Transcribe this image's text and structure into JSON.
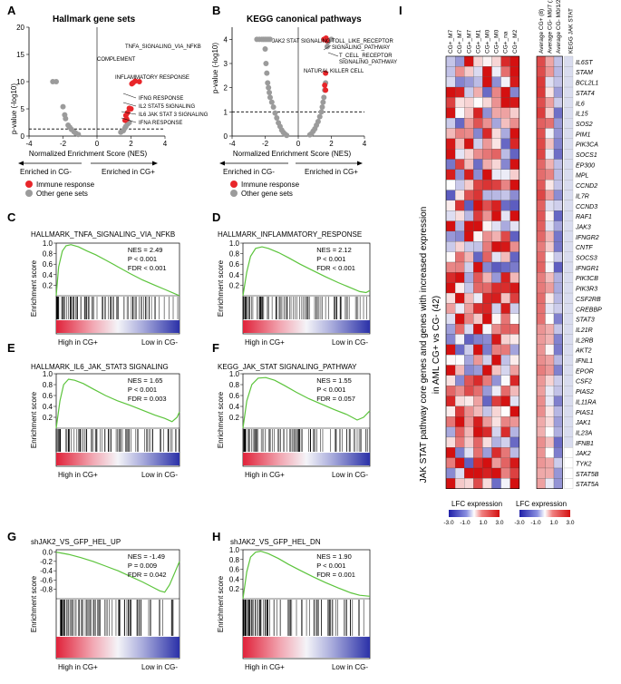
{
  "panels": {
    "A": {
      "label": "A",
      "title": "Hallmark gene sets"
    },
    "B": {
      "label": "B",
      "title": "KEGG canonical pathways"
    },
    "C": {
      "label": "C"
    },
    "D": {
      "label": "D"
    },
    "E": {
      "label": "E"
    },
    "F": {
      "label": "F"
    },
    "G": {
      "label": "G"
    },
    "H": {
      "label": "H"
    },
    "I": {
      "label": "I"
    }
  },
  "volcano_common": {
    "xlabel": "Normalized Enrichment Score (NES)",
    "ylabel": "p-value (-log10)",
    "enriched_left": "Enriched in CG-",
    "enriched_right": "Enriched in CG+",
    "legend_immune": "Immune response",
    "legend_other": "Other gene sets",
    "colors": {
      "immune": "#e8262a",
      "other": "#9b9b9b"
    }
  },
  "gsea_common": {
    "ylabel": "Enrichment score",
    "high_label": "High in CG+",
    "low_label": "Low in CG-",
    "curve_color": "#5cc43c"
  },
  "heatmap_common": {
    "title_line1": "JAK STAT pathway core genes and  genes with increased expression",
    "title_line2": "in AML CG+ vs CG- (42)",
    "legend_title": "LFC expression",
    "legend_ticks": [
      "-3.0",
      "-1.0",
      "1.0",
      "3.0"
    ]
  },
  "chart_data": [
    {
      "id": "A",
      "type": "scatter",
      "title": "Hallmark gene sets",
      "xlabel": "Normalized Enrichment Score (NES)",
      "ylabel": "p-value (-log10)",
      "xlim": [
        -4,
        4
      ],
      "ylim": [
        0,
        20
      ],
      "xticks": [
        -4,
        -2,
        0,
        2,
        4
      ],
      "yticks": [
        0,
        5,
        10,
        15,
        20
      ],
      "threshold": 1.3,
      "series": [
        {
          "name": "Other gene sets",
          "color": "#9b9b9b",
          "points": [
            [
              -2.6,
              10
            ],
            [
              -2.4,
              10
            ],
            [
              -2.0,
              5.4
            ],
            [
              -1.9,
              3.9
            ],
            [
              -1.85,
              3.2
            ],
            [
              -1.7,
              2.0
            ],
            [
              -1.6,
              1.6
            ],
            [
              -1.5,
              1.2
            ],
            [
              -1.35,
              0.8
            ],
            [
              -1.25,
              0.55
            ],
            [
              -1.1,
              0.3
            ],
            [
              1.4,
              0.7
            ],
            [
              1.55,
              1.0
            ],
            [
              1.65,
              1.5
            ],
            [
              1.7,
              1.8
            ],
            [
              1.8,
              2.2
            ],
            [
              1.9,
              2.5
            ]
          ]
        },
        {
          "name": "Immune response",
          "color": "#e8262a",
          "points": [
            [
              2.05,
              9.6
            ],
            [
              2.12,
              9.8
            ],
            [
              2.25,
              10.1
            ],
            [
              2.49,
              10.0
            ],
            [
              1.9,
              5.1
            ],
            [
              2.0,
              5.0
            ],
            [
              1.7,
              3.8
            ],
            [
              1.8,
              4.3
            ],
            [
              1.65,
              2.9
            ],
            [
              1.75,
              3.1
            ]
          ]
        }
      ],
      "annotations": [
        "TNFA_SIGNALING_VIA_NFKB",
        "COMPLEMENT",
        "INFLAMMATORY RESPONSE",
        "IFNG RESPONSE",
        "IL2 STAT5 SIGNALING",
        "IL6 JAK STAT 3 SIGNALING",
        "IFNA RESPONSE"
      ]
    },
    {
      "id": "B",
      "type": "scatter",
      "title": "KEGG canonical pathways",
      "xlabel": "Normalized Enrichment Score (NES)",
      "ylabel": "p-value (-log10)",
      "xlim": [
        -4,
        4
      ],
      "ylim": [
        0,
        4.5
      ],
      "xticks": [
        -4,
        -2,
        0,
        2,
        4
      ],
      "yticks": [
        0,
        1,
        2,
        3,
        4
      ],
      "threshold": 1.0,
      "series": [
        {
          "name": "Other gene sets",
          "color": "#9b9b9b",
          "points": [
            [
              -2.5,
              4
            ],
            [
              -2.35,
              4
            ],
            [
              -2.2,
              4
            ],
            [
              -2.1,
              4
            ],
            [
              -2.0,
              4
            ],
            [
              -1.9,
              4
            ],
            [
              -1.8,
              4
            ],
            [
              -1.7,
              4
            ],
            [
              -2.0,
              3.6
            ],
            [
              -1.95,
              3.0
            ],
            [
              -1.9,
              2.6
            ],
            [
              -1.85,
              2.2
            ],
            [
              -1.8,
              2.0
            ],
            [
              -1.75,
              1.8
            ],
            [
              -1.7,
              1.6
            ],
            [
              -1.6,
              1.4
            ],
            [
              -1.5,
              1.2
            ],
            [
              -1.4,
              0.95
            ],
            [
              -1.3,
              0.75
            ],
            [
              -1.2,
              0.55
            ],
            [
              -1.1,
              0.4
            ],
            [
              -1.0,
              0.25
            ],
            [
              -0.9,
              0.15
            ],
            [
              -0.8,
              0.08
            ],
            [
              -0.7,
              0.03
            ],
            [
              0.7,
              0.05
            ],
            [
              0.8,
              0.1
            ],
            [
              0.9,
              0.2
            ],
            [
              1.0,
              0.3
            ],
            [
              1.1,
              0.45
            ],
            [
              1.2,
              0.6
            ],
            [
              1.3,
              0.8
            ],
            [
              1.4,
              1.0
            ],
            [
              1.45,
              1.2
            ],
            [
              1.5,
              1.4
            ],
            [
              1.55,
              1.6
            ],
            [
              1.6,
              1.9
            ],
            [
              1.65,
              2.2
            ],
            [
              1.75,
              3.7
            ],
            [
              1.8,
              3.9
            ],
            [
              2.0,
              4.0
            ]
          ]
        },
        {
          "name": "Immune response",
          "color": "#e8262a",
          "points": [
            [
              1.55,
              4.0
            ],
            [
              1.6,
              4.0
            ],
            [
              1.68,
              4.05
            ],
            [
              1.72,
              3.95
            ],
            [
              1.65,
              2.6
            ],
            [
              1.6,
              2.1
            ],
            [
              1.65,
              1.9
            ]
          ]
        }
      ],
      "annotations": [
        "JAK2 STAT SIGNALING",
        "TOLL_LIKE_RECEPTOR",
        "SIGNALING_PATHWAY",
        "T_CELL_RECEPTOR",
        "SIGNALING_PATHWAY",
        "NATURAL KILLER CELL"
      ]
    },
    {
      "id": "C",
      "type": "line",
      "title": "HALLMARK_TNFA_SIGNALING_VIA_NFKB",
      "stats": [
        "NES = 2.49",
        "P < 0.001",
        "FDR < 0.001"
      ],
      "ylim": [
        0,
        1
      ],
      "yticks": [
        "1.0",
        "0.8",
        "0.6",
        "0.4",
        "0.2"
      ],
      "x": [
        0,
        0.02,
        0.05,
        0.08,
        0.12,
        0.18,
        0.25,
        0.32,
        0.4,
        0.5,
        0.6,
        0.7,
        0.8,
        0.88,
        0.95,
        1.0
      ],
      "values": [
        0,
        0.55,
        0.85,
        0.95,
        0.97,
        0.93,
        0.85,
        0.78,
        0.68,
        0.55,
        0.42,
        0.3,
        0.2,
        0.12,
        0.05,
        0
      ]
    },
    {
      "id": "D",
      "type": "line",
      "title": "HALLMARK_INFLAMMATORY_RESPONSE",
      "stats": [
        "NES = 2.12",
        "P < 0.001",
        "FDR < 0.001"
      ],
      "ylim": [
        0,
        1
      ],
      "yticks": [
        "1.0",
        "0.8",
        "0.6",
        "0.4",
        "0.2"
      ],
      "x": [
        0,
        0.03,
        0.06,
        0.1,
        0.15,
        0.2,
        0.28,
        0.36,
        0.45,
        0.55,
        0.65,
        0.75,
        0.85,
        0.92,
        0.97,
        1.0
      ],
      "values": [
        0,
        0.45,
        0.75,
        0.9,
        0.93,
        0.9,
        0.82,
        0.72,
        0.6,
        0.48,
        0.36,
        0.25,
        0.15,
        0.08,
        0.06,
        0.1
      ]
    },
    {
      "id": "E",
      "type": "line",
      "title": "HALLMARK_IL6_JAK_STAT3 SIGNALING",
      "stats": [
        "NES = 1.65",
        "P < 0.001",
        "FDR = 0.003"
      ],
      "ylim": [
        0,
        1
      ],
      "yticks": [
        "1.0",
        "0.8",
        "0.6",
        "0.4",
        "0.2"
      ],
      "x": [
        0,
        0.03,
        0.06,
        0.1,
        0.15,
        0.22,
        0.3,
        0.4,
        0.5,
        0.6,
        0.7,
        0.8,
        0.88,
        0.94,
        0.98,
        1.0
      ],
      "values": [
        0,
        0.5,
        0.8,
        0.9,
        0.88,
        0.82,
        0.72,
        0.6,
        0.5,
        0.42,
        0.33,
        0.24,
        0.18,
        0.12,
        0.2,
        0.3
      ]
    },
    {
      "id": "F",
      "type": "line",
      "title": "KEGG_JAK_STAT SIGNALING_PATHWAY",
      "stats": [
        "NES = 1.55",
        "P < 0.001",
        "FDR = 0.057"
      ],
      "ylim": [
        0,
        1
      ],
      "yticks": [
        "1.0",
        "0.8",
        "0.6",
        "0.4",
        "0.2"
      ],
      "x": [
        0,
        0.03,
        0.07,
        0.12,
        0.18,
        0.25,
        0.33,
        0.42,
        0.52,
        0.62,
        0.72,
        0.82,
        0.9,
        0.95,
        1.0
      ],
      "values": [
        0,
        0.5,
        0.8,
        0.92,
        0.93,
        0.88,
        0.78,
        0.66,
        0.54,
        0.44,
        0.34,
        0.25,
        0.15,
        0.2,
        0.32
      ]
    },
    {
      "id": "G",
      "type": "line",
      "title": "shJAK2_VS_GFP_HEL_UP",
      "stats": [
        "NES = -1.49",
        "P = 0.009",
        "FDR = 0.042"
      ],
      "ylim": [
        -1,
        0.05
      ],
      "yticks": [
        "0.0",
        "-0.2",
        "-0.4",
        "-0.6",
        "-0.8"
      ],
      "x": [
        0,
        0.1,
        0.2,
        0.3,
        0.4,
        0.5,
        0.6,
        0.7,
        0.78,
        0.84,
        0.88,
        0.92,
        0.96,
        1.0
      ],
      "values": [
        0,
        -0.05,
        -0.12,
        -0.2,
        -0.3,
        -0.4,
        -0.52,
        -0.64,
        -0.75,
        -0.83,
        -0.86,
        -0.7,
        -0.45,
        -0.2
      ]
    },
    {
      "id": "H",
      "type": "line",
      "title": "shJAK2_VS_GFP_HEL_DN",
      "stats": [
        "NES = 1.90",
        "P < 0.001",
        "FDR = 0.001"
      ],
      "ylim": [
        0,
        1
      ],
      "yticks": [
        "1.0",
        "0.8",
        "0.6",
        "0.4",
        "0.2"
      ],
      "x": [
        0,
        0.03,
        0.06,
        0.1,
        0.14,
        0.2,
        0.28,
        0.36,
        0.45,
        0.55,
        0.65,
        0.75,
        0.85,
        0.92,
        1.0
      ],
      "values": [
        0,
        0.55,
        0.85,
        0.95,
        0.97,
        0.92,
        0.82,
        0.7,
        0.58,
        0.45,
        0.33,
        0.22,
        0.12,
        0.07,
        0.05
      ]
    },
    {
      "id": "I",
      "type": "heatmap",
      "columns": [
        "CG+_M7",
        "CG+_M7",
        "CG+_M7",
        "CG+_M1",
        "CG+_M0",
        "CG+_M0",
        "CG+_na",
        "CG+_M2"
      ],
      "avg_columns": [
        "Average CG+ (8)",
        "Average CG- M6/7 (14)",
        "Average CG- M0/1/2/4/5 (278)",
        "KEGG JAK STAT"
      ],
      "rows": [
        "IL6ST",
        "STAM",
        "BCL2L1",
        "STAT4",
        "IL6",
        "IL15",
        "SOS2",
        "PIM1",
        "PIK3CA",
        "SOCS1",
        "EP300",
        "MPL",
        "CCND2",
        "IL7R",
        "CCND3",
        "RAF1",
        "JAK3",
        "IFNGR2",
        "CNTF",
        "SOCS3",
        "IFNGR1",
        "PIK3CB",
        "PIK3R3",
        "CSF2RB",
        "CREBBP",
        "STAT3",
        "IL21R",
        "IL2RB",
        "AKT2",
        "IFNL1",
        "EPOR",
        "CSF2",
        "PIAS2",
        "IL11RA",
        "PIAS1",
        "JAK1",
        "IL23A",
        "IFNB1",
        "JAK2",
        "TYK2",
        "STAT5B",
        "STAT5A"
      ],
      "scale": [
        -3,
        3
      ]
    }
  ]
}
